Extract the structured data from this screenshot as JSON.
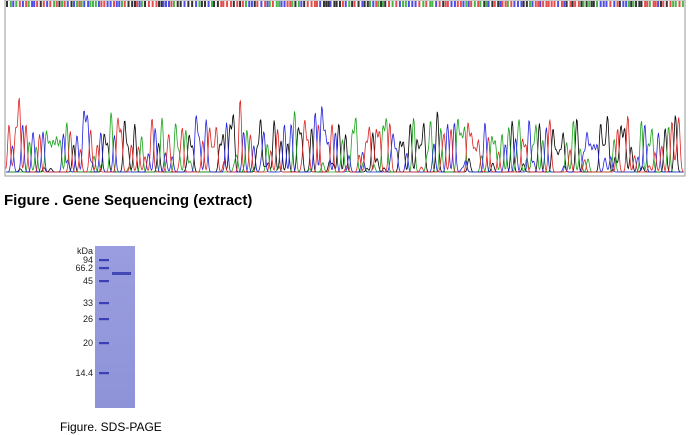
{
  "figure1": {
    "caption": "Figure . Gene Sequencing (extract)"
  },
  "figure2": {
    "unit": "kDa",
    "ladder": [
      "94",
      "66.2",
      "45",
      "33",
      "26",
      "20",
      "14.4"
    ],
    "caption": "Figure. SDS-PAGE"
  }
}
